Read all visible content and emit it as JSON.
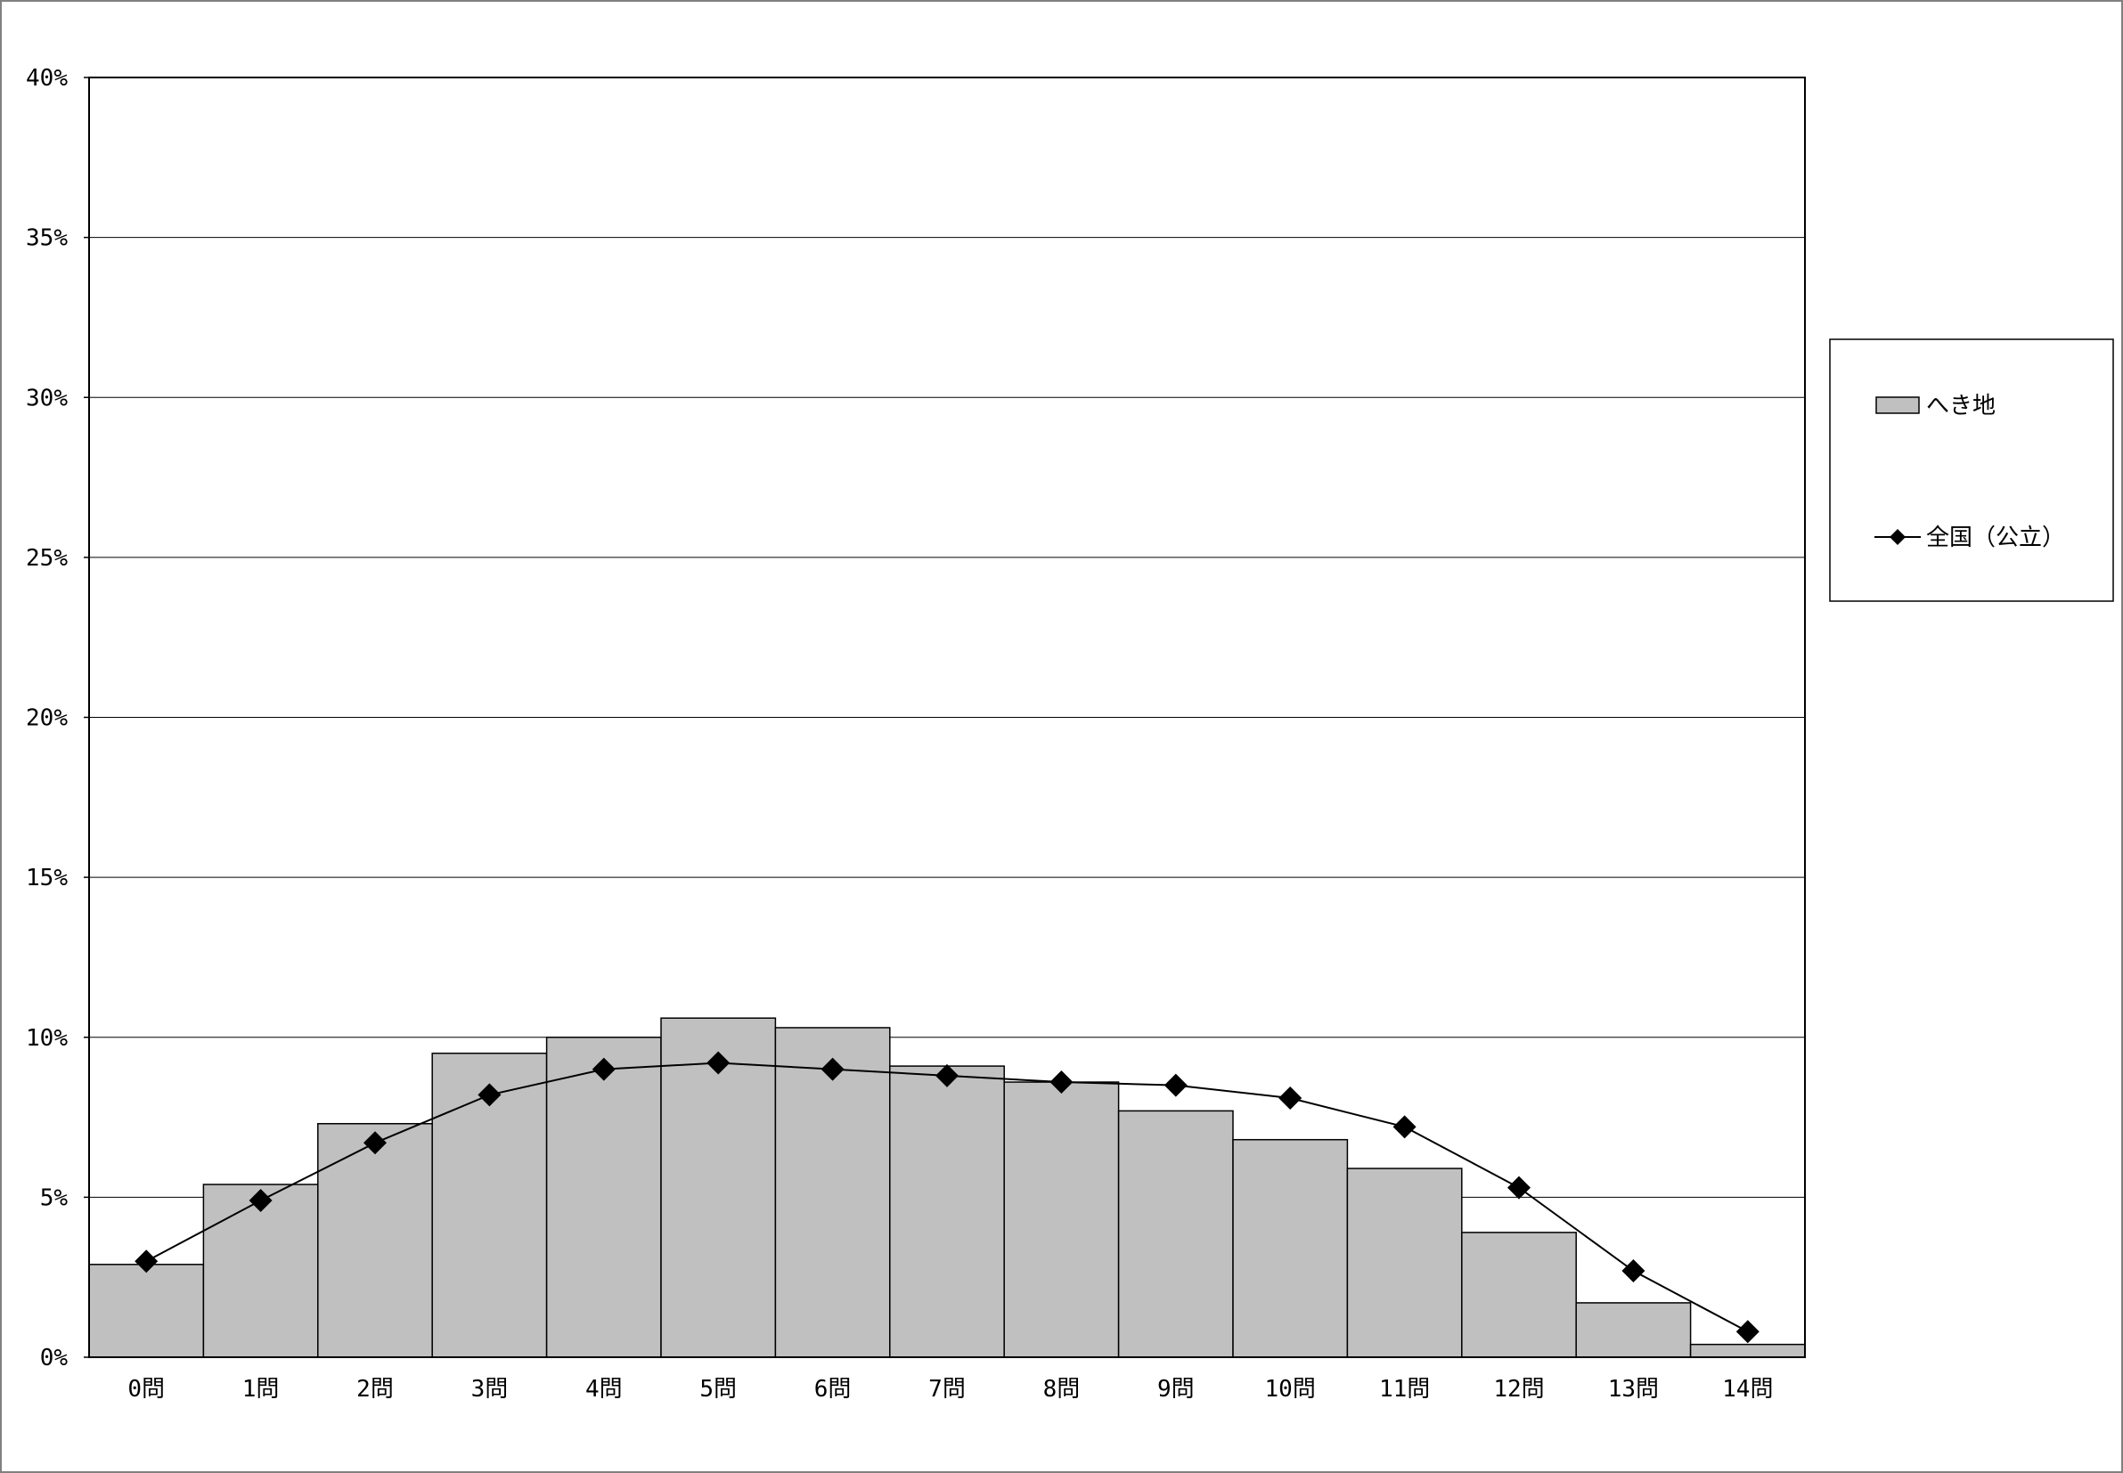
{
  "chart_data": {
    "type": "bar",
    "categories": [
      "0問",
      "1問",
      "2問",
      "3問",
      "4問",
      "5問",
      "6問",
      "7問",
      "8問",
      "9問",
      "10問",
      "11問",
      "12問",
      "13問",
      "14問"
    ],
    "series": [
      {
        "name": "へき地",
        "type": "bar",
        "color": "#c0c0c0",
        "values": [
          2.9,
          5.4,
          7.3,
          9.5,
          10.0,
          10.6,
          10.3,
          9.1,
          8.6,
          7.7,
          6.8,
          5.9,
          3.9,
          1.7,
          0.4
        ]
      },
      {
        "name": "全国（公立）",
        "type": "line",
        "color": "#000000",
        "marker": "diamond",
        "values": [
          3.0,
          4.9,
          6.7,
          8.2,
          9.0,
          9.2,
          9.0,
          8.8,
          8.6,
          8.5,
          8.1,
          7.2,
          5.3,
          2.7,
          0.8
        ]
      }
    ],
    "y_ticks": [
      "0%",
      "5%",
      "10%",
      "15%",
      "20%",
      "25%",
      "30%",
      "35%",
      "40%"
    ],
    "ylim": [
      0,
      40
    ],
    "grid": true,
    "legend_position": "right"
  }
}
